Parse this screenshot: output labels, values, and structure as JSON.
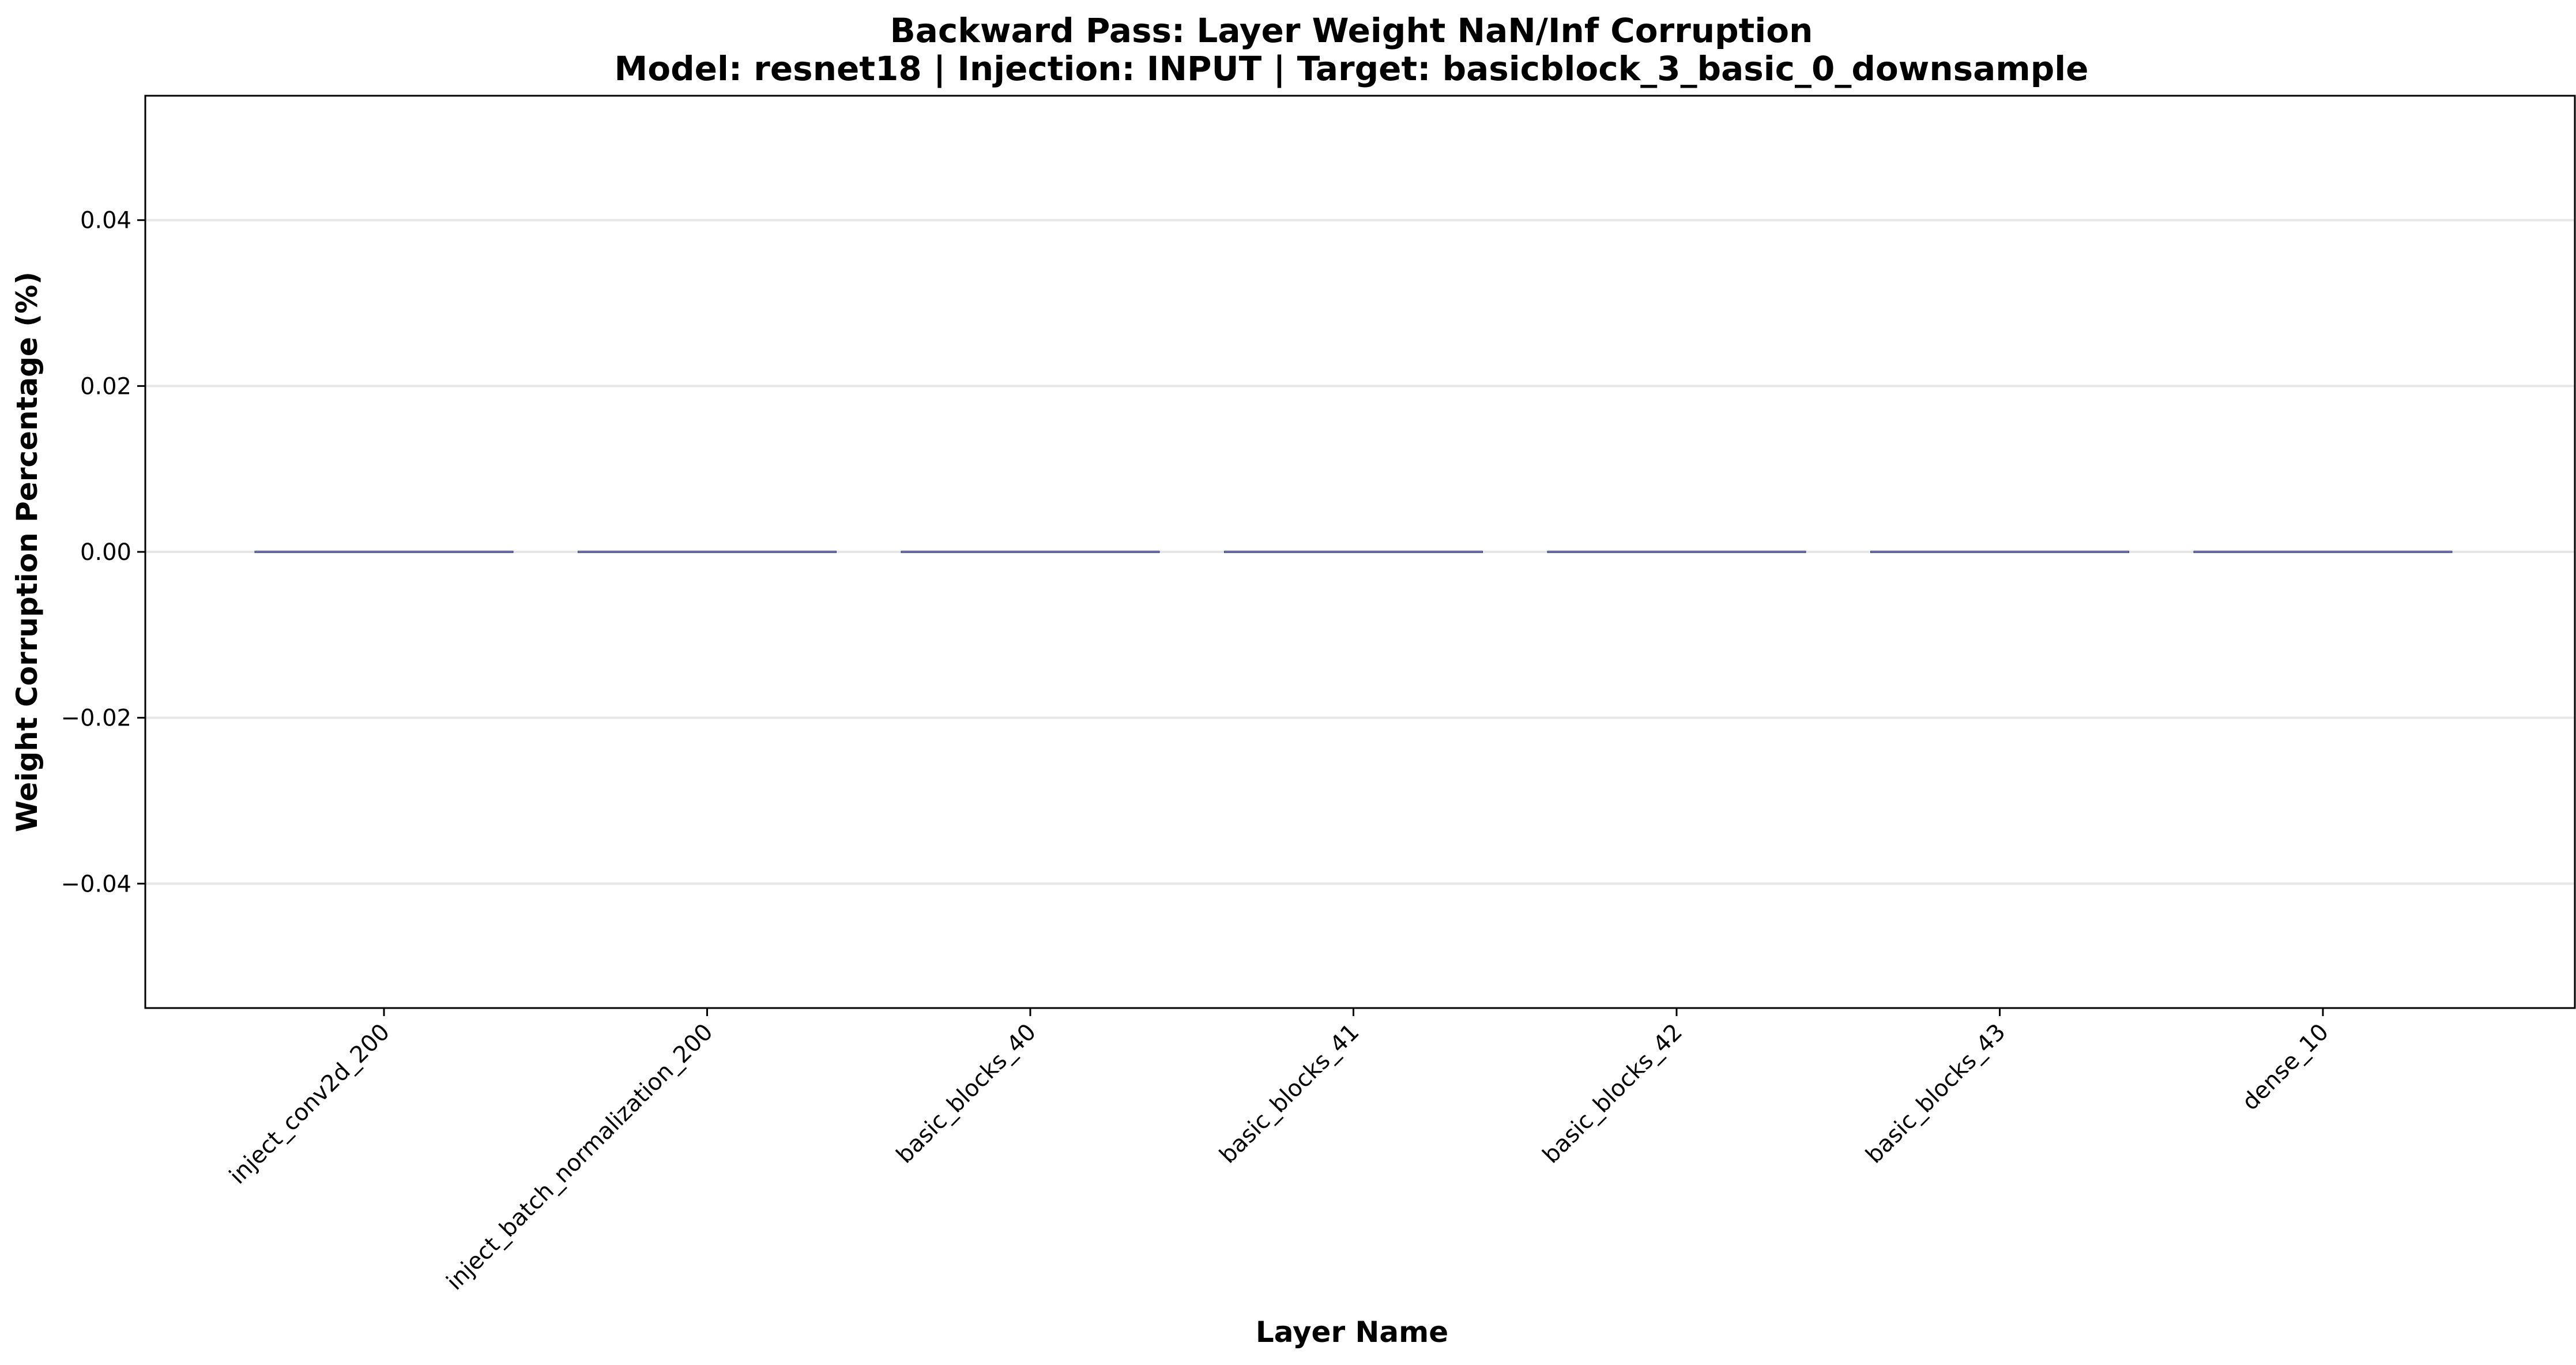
{
  "chart_data": {
    "type": "bar",
    "title": "Backward Pass: Layer Weight NaN/Inf Corruption",
    "subtitle": "Model: resnet18 | Injection: INPUT | Target: basicblock_3_basic_0_downsample",
    "xlabel": "Layer Name",
    "ylabel": "Weight Corruption Percentage (%)",
    "categories": [
      "inject_conv2d_200",
      "inject_batch_normalization_200",
      "basic_blocks_40",
      "basic_blocks_41",
      "basic_blocks_42",
      "basic_blocks_43",
      "dense_10"
    ],
    "values": [
      0,
      0,
      0,
      0,
      0,
      0,
      0
    ],
    "ylim": [
      -0.055,
      0.055
    ],
    "yticks": [
      0.04,
      0.02,
      0.0,
      -0.02,
      -0.04
    ],
    "ytick_labels": [
      "0.04",
      "0.02",
      "0.00",
      "−0.02",
      "−0.04"
    ],
    "grid": "horizontal",
    "colors": {
      "bar": "#7b7fc4",
      "bar_edge": "#3b3f7a",
      "grid": "#e6e6e6",
      "axis": "#000000"
    }
  }
}
